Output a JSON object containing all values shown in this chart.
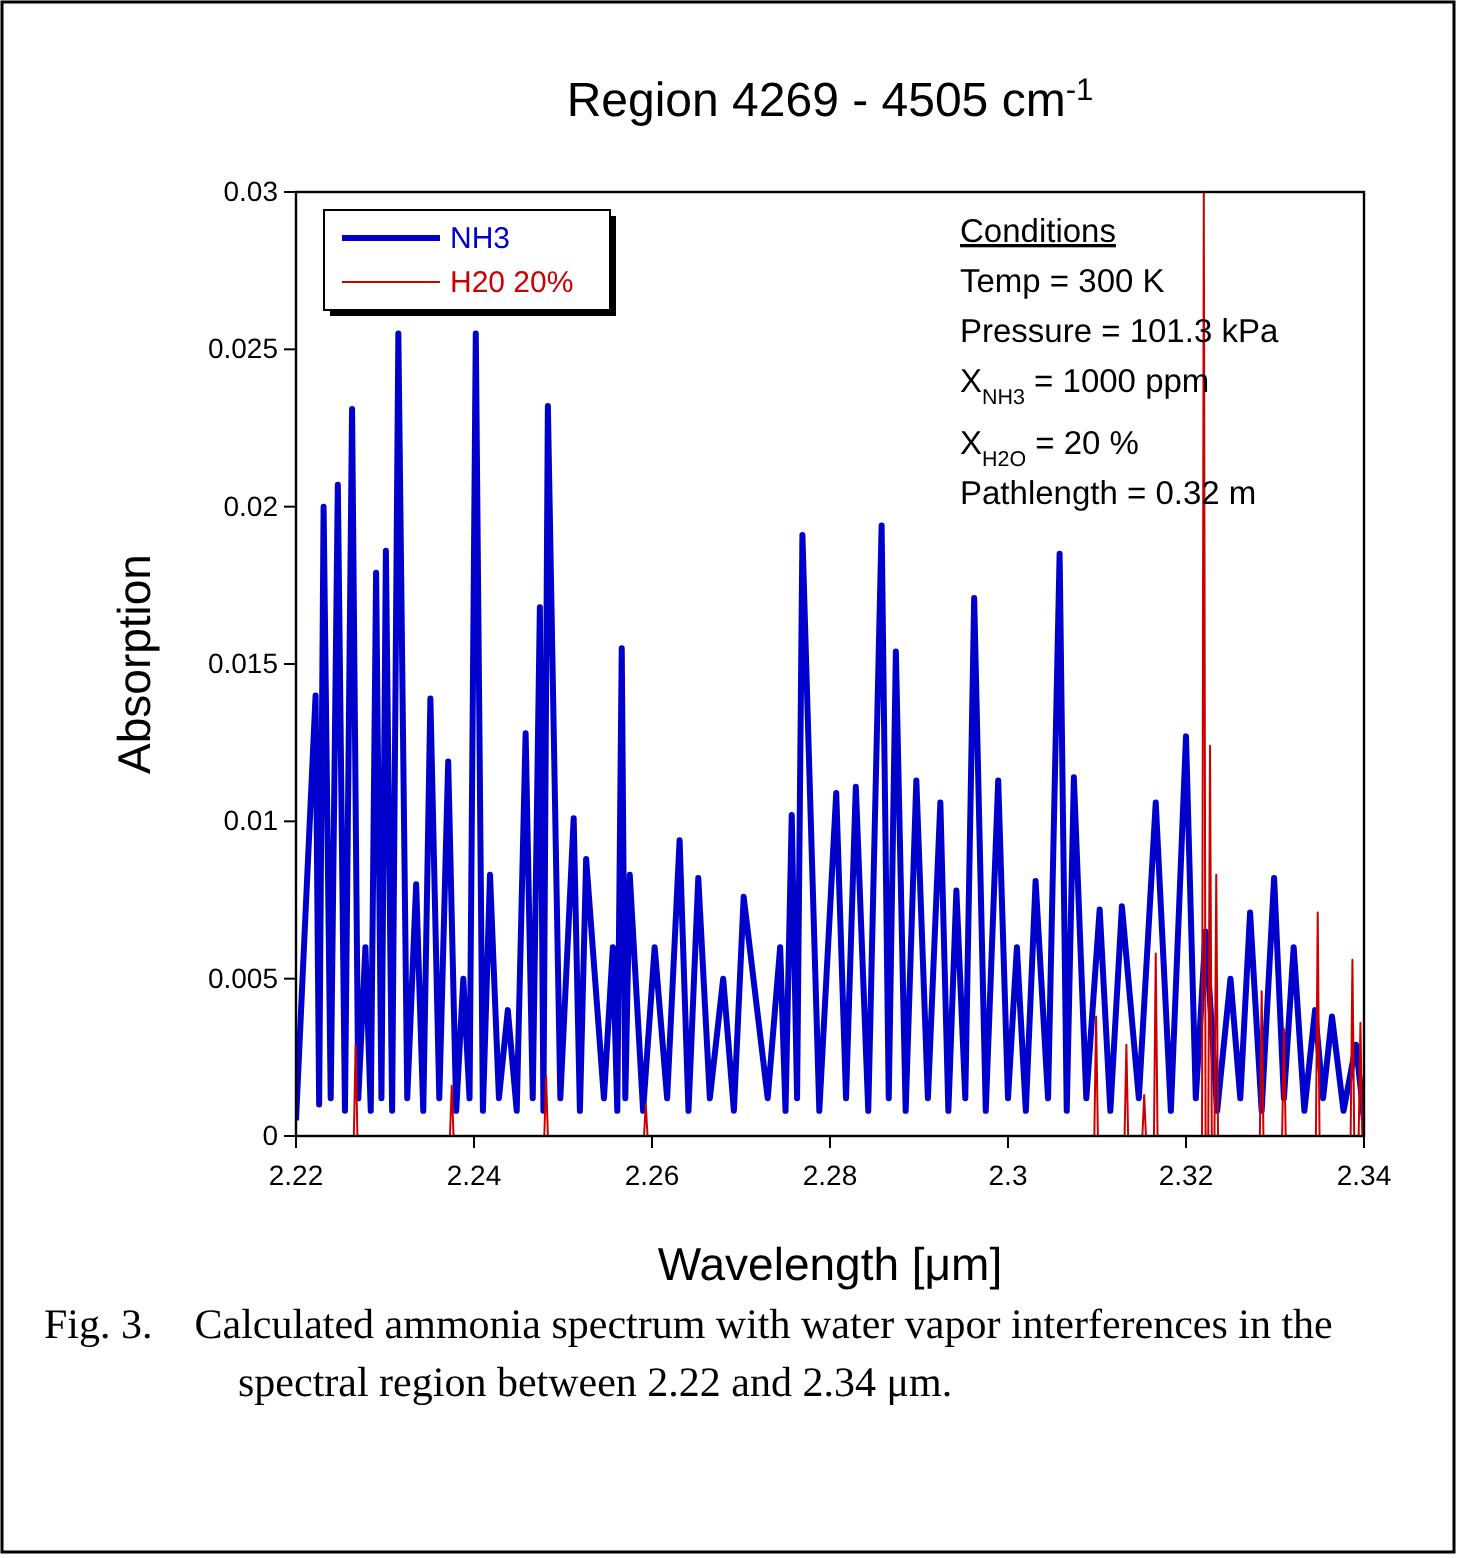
{
  "chart_data": {
    "type": "line",
    "title": "Region 4269 - 4505 cm$^{-1}$",
    "xlabel": "Wavelength [μm]",
    "ylabel": "Absorption",
    "xlim": [
      2.22,
      2.34
    ],
    "xticks": [
      2.22,
      2.24,
      2.26,
      2.28,
      2.3,
      2.32,
      2.34
    ],
    "ylim": [
      0,
      0.03
    ],
    "yticks": [
      0,
      0.005,
      0.01,
      0.015,
      0.02,
      0.025,
      0.03
    ],
    "grid": false,
    "legend": "top left",
    "marker": "none",
    "line_style": "solid",
    "series": [
      {
        "name": "NH3",
        "color": "#0000cc",
        "x": [
          2.22,
          2.2222,
          2.2226,
          2.2231,
          2.2239,
          2.2247,
          2.2255,
          2.2263,
          2.227,
          2.2278,
          2.2284,
          2.229,
          2.2296,
          2.2301,
          2.2308,
          2.2315,
          2.2325,
          2.2335,
          2.2343,
          2.2351,
          2.2361,
          2.2371,
          2.238,
          2.2388,
          2.2395,
          2.2402,
          2.241,
          2.2418,
          2.2428,
          2.2438,
          2.2448,
          2.2458,
          2.2466,
          2.2474,
          2.2478,
          2.2483,
          2.2497,
          2.2512,
          2.2519,
          2.2526,
          2.2546,
          2.2556,
          2.2561,
          2.2566,
          2.257,
          2.2575,
          2.259,
          2.2603,
          2.2617,
          2.2631,
          2.2641,
          2.2652,
          2.2665,
          2.268,
          2.2692,
          2.2703,
          2.273,
          2.2744,
          2.275,
          2.2757,
          2.2763,
          2.2769,
          2.2788,
          2.2807,
          2.2818,
          2.2829,
          2.2843,
          2.2858,
          2.2866,
          2.2874,
          2.2885,
          2.2897,
          2.291,
          2.2924,
          2.2933,
          2.2942,
          2.2952,
          2.2962,
          2.2975,
          2.2989,
          2.3,
          2.301,
          2.302,
          2.3031,
          2.3045,
          2.3058,
          2.3066,
          2.3074,
          2.3088,
          2.3103,
          2.3115,
          2.3128,
          2.3147,
          2.3166,
          2.3183,
          2.32,
          2.3211,
          2.3222,
          2.3235,
          2.325,
          2.3261,
          2.3272,
          2.3285,
          2.3299,
          2.331,
          2.3321,
          2.3333,
          2.3345,
          2.3354,
          2.3364,
          2.3377,
          2.3391,
          2.34
        ],
        "values": [
          0.0005,
          0.014,
          0.001,
          0.02,
          0.0012,
          0.0207,
          0.0008,
          0.0231,
          0.0012,
          0.006,
          0.0008,
          0.0179,
          0.0012,
          0.0186,
          0.0008,
          0.0255,
          0.0012,
          0.008,
          0.0008,
          0.0139,
          0.0012,
          0.0119,
          0.0008,
          0.005,
          0.0012,
          0.0255,
          0.0008,
          0.0083,
          0.0012,
          0.004,
          0.0008,
          0.0128,
          0.0012,
          0.0168,
          0.0008,
          0.0232,
          0.0012,
          0.0101,
          0.0008,
          0.0088,
          0.0012,
          0.006,
          0.0008,
          0.0155,
          0.0012,
          0.0083,
          0.0008,
          0.006,
          0.0012,
          0.0094,
          0.0008,
          0.0082,
          0.0012,
          0.005,
          0.0008,
          0.0076,
          0.0012,
          0.006,
          0.0008,
          0.0102,
          0.0012,
          0.0191,
          0.0008,
          0.0109,
          0.0012,
          0.0111,
          0.0008,
          0.0194,
          0.0012,
          0.0154,
          0.0008,
          0.0113,
          0.0012,
          0.0106,
          0.0008,
          0.0078,
          0.0012,
          0.0171,
          0.0008,
          0.0113,
          0.0012,
          0.006,
          0.0008,
          0.0081,
          0.0012,
          0.0185,
          0.0008,
          0.0114,
          0.0012,
          0.0072,
          0.0008,
          0.0073,
          0.0012,
          0.0106,
          0.0008,
          0.0127,
          0.0012,
          0.0065,
          0.0008,
          0.005,
          0.0012,
          0.0071,
          0.0008,
          0.0082,
          0.0012,
          0.006,
          0.0008,
          0.004,
          0.0012,
          0.0038,
          0.0008,
          0.0029,
          0.0005
        ]
      },
      {
        "name": "H20 20%",
        "color": "#cc0000",
        "x": [
          2.22,
          2.2265,
          2.2267,
          2.2269,
          2.2373,
          2.2375,
          2.2377,
          2.2479,
          2.2481,
          2.2483,
          2.2591,
          2.2593,
          2.2595,
          2.3097,
          2.3099,
          2.3101,
          2.3131,
          2.3133,
          2.3135,
          2.3151,
          2.3153,
          2.3155,
          2.3164,
          2.3166,
          2.3168,
          2.3218,
          2.322,
          2.3222,
          2.3225,
          2.3227,
          2.3229,
          2.3232,
          2.3234,
          2.3236,
          2.3283,
          2.3285,
          2.3287,
          2.3308,
          2.331,
          2.3312,
          2.3346,
          2.3348,
          2.335,
          2.3385,
          2.3387,
          2.3389,
          2.3394,
          2.3396,
          2.3398,
          2.34
        ],
        "values": [
          0,
          0,
          0.0029,
          0,
          0,
          0.0016,
          0,
          0,
          0.0019,
          0,
          0,
          0.001,
          0,
          0,
          0.0038,
          0,
          0,
          0.0029,
          0,
          0,
          0.0013,
          0,
          0,
          0.0058,
          0,
          0,
          0.03,
          0,
          0,
          0.0124,
          0,
          0,
          0.0083,
          0,
          0,
          0.0046,
          0,
          0,
          0.0034,
          0,
          0,
          0.0071,
          0,
          0,
          0.0056,
          0,
          0,
          0.0036,
          0,
          0
        ]
      }
    ],
    "annotations": [
      "Conditions",
      "Temp = 300 K",
      "Pressure = 101.3 kPa",
      "X$_{NH3}$ = 1000 ppm",
      "X$_{H2O}$ = 20 %",
      "Pathlength = 0.32 m",
      "Fig. 3.    Calculated ammonia spectrum with water vapor interferences in the spectral region between 2.22 and 2.34 μm."
    ]
  }
}
